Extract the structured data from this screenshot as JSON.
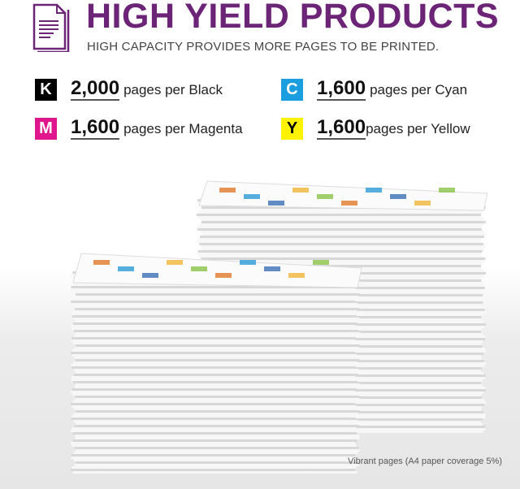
{
  "header": {
    "title": "HIGH YIELD PRODUCTS",
    "subtitle": "HIGH CAPACITY PROVIDES MORE PAGES TO BE PRINTED.",
    "icon": "document-icon",
    "accent": "#6b2476"
  },
  "yields": [
    {
      "letter": "K",
      "color": "#000000",
      "text_color": "#ffffff",
      "count": "2,000",
      "label": "pages per Black"
    },
    {
      "letter": "C",
      "color": "#1a9ee0",
      "text_color": "#ffffff",
      "count": "1,600",
      "label": "pages per Cyan"
    },
    {
      "letter": "M",
      "color": "#e0168c",
      "text_color": "#ffffff",
      "count": "1,600",
      "label": "pages per Magenta"
    },
    {
      "letter": "Y",
      "color": "#fff200",
      "text_color": "#000000",
      "count": "1,600",
      "label": "pages per Yellow"
    }
  ],
  "caption": "Vibrant pages (A4 paper coverage 5%)"
}
